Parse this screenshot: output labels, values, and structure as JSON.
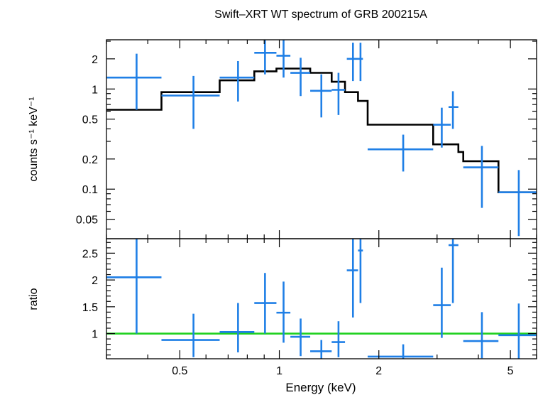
{
  "chart_data": {
    "type": "scatter",
    "title": "Swift–XRT WT spectrum of GRB 200215A",
    "xlabel": "Energy (keV)",
    "xscale": "log",
    "xlim": [
      0.3,
      6.0
    ],
    "x_ticks": [
      "0.5",
      "1",
      "2",
      "5"
    ],
    "x_tick_values": [
      0.5,
      1,
      2,
      5
    ],
    "grid": false,
    "colors": {
      "data": "#1f7fe6",
      "model": "#000000",
      "ratio_line": "#1ed01e"
    },
    "panels": [
      {
        "name": "spectrum",
        "ylabel": "counts s⁻¹ keV⁻¹",
        "yscale": "log",
        "ylim": [
          0.032,
          3.1
        ],
        "y_ticks": [
          "0.05",
          "0.1",
          "0.2",
          "0.5",
          "1",
          "2"
        ],
        "y_tick_values": [
          0.05,
          0.1,
          0.2,
          0.5,
          1,
          2
        ],
        "data": [
          {
            "x": 0.37,
            "xlo": 0.3,
            "xhi": 0.44,
            "y": 1.3,
            "ylo": 0.62,
            "yhi": 2.25
          },
          {
            "x": 0.55,
            "xlo": 0.44,
            "xhi": 0.66,
            "y": 0.86,
            "ylo": 0.4,
            "yhi": 1.35
          },
          {
            "x": 0.75,
            "xlo": 0.66,
            "xhi": 0.84,
            "y": 1.3,
            "ylo": 0.75,
            "yhi": 1.9
          },
          {
            "x": 0.905,
            "xlo": 0.84,
            "xhi": 0.98,
            "y": 2.3,
            "ylo": 1.4,
            "yhi": 3.1
          },
          {
            "x": 1.03,
            "xlo": 0.98,
            "xhi": 1.08,
            "y": 2.15,
            "ylo": 1.3,
            "yhi": 3.1
          },
          {
            "x": 1.16,
            "xlo": 1.08,
            "xhi": 1.24,
            "y": 1.45,
            "ylo": 0.85,
            "yhi": 2.05
          },
          {
            "x": 1.34,
            "xlo": 1.24,
            "xhi": 1.44,
            "y": 0.96,
            "ylo": 0.52,
            "yhi": 1.4
          },
          {
            "x": 1.51,
            "xlo": 1.44,
            "xhi": 1.58,
            "y": 0.98,
            "ylo": 0.55,
            "yhi": 1.45
          },
          {
            "x": 1.67,
            "xlo": 1.6,
            "xhi": 1.73,
            "y": 2.0,
            "ylo": 1.2,
            "yhi": 2.9
          },
          {
            "x": 1.76,
            "xlo": 1.73,
            "xhi": 1.79,
            "y": 2.0,
            "ylo": 1.2,
            "yhi": 2.9
          },
          {
            "x": 2.37,
            "xlo": 1.85,
            "xhi": 2.92,
            "y": 0.25,
            "ylo": 0.15,
            "yhi": 0.35
          },
          {
            "x": 3.1,
            "xlo": 2.92,
            "xhi": 3.3,
            "y": 0.44,
            "ylo": 0.26,
            "yhi": 0.65
          },
          {
            "x": 3.35,
            "xlo": 3.25,
            "xhi": 3.48,
            "y": 0.66,
            "ylo": 0.4,
            "yhi": 0.95
          },
          {
            "x": 4.1,
            "xlo": 3.6,
            "xhi": 4.6,
            "y": 0.165,
            "ylo": 0.065,
            "yhi": 0.27
          },
          {
            "x": 5.3,
            "xlo": 4.6,
            "xhi": 6.0,
            "y": 0.093,
            "ylo": 0.034,
            "yhi": 0.155
          }
        ],
        "model_steps": [
          [
            0.3,
            0.62
          ],
          [
            0.44,
            0.93
          ],
          [
            0.66,
            1.22
          ],
          [
            0.84,
            1.5
          ],
          [
            0.98,
            1.6
          ],
          [
            1.24,
            1.45
          ],
          [
            1.44,
            1.18
          ],
          [
            1.58,
            0.93
          ],
          [
            1.73,
            0.76
          ],
          [
            1.85,
            0.44
          ],
          [
            2.92,
            0.28
          ],
          [
            3.48,
            0.235
          ],
          [
            3.6,
            0.19
          ],
          [
            4.6,
            0.093
          ],
          [
            6.0,
            0.093
          ]
        ]
      },
      {
        "name": "ratio",
        "ylabel": "ratio",
        "yscale": "linear",
        "ylim": [
          0.53,
          2.77
        ],
        "y_ticks": [
          "1",
          "1.5",
          "2",
          "2.5"
        ],
        "y_tick_values": [
          1,
          1.5,
          2,
          2.5
        ],
        "reference_line": 1,
        "data": [
          {
            "x": 0.37,
            "xlo": 0.3,
            "xhi": 0.44,
            "y": 2.05,
            "ylo": 1.0,
            "yhi": 2.77
          },
          {
            "x": 0.55,
            "xlo": 0.44,
            "xhi": 0.66,
            "y": 0.88,
            "ylo": 0.56,
            "yhi": 1.37
          },
          {
            "x": 0.75,
            "xlo": 0.66,
            "xhi": 0.84,
            "y": 1.03,
            "ylo": 0.65,
            "yhi": 1.57
          },
          {
            "x": 0.905,
            "xlo": 0.84,
            "xhi": 0.98,
            "y": 1.57,
            "ylo": 1.0,
            "yhi": 2.13
          },
          {
            "x": 1.03,
            "xlo": 0.98,
            "xhi": 1.08,
            "y": 1.39,
            "ylo": 0.83,
            "yhi": 1.97
          },
          {
            "x": 1.16,
            "xlo": 1.08,
            "xhi": 1.24,
            "y": 0.94,
            "ylo": 0.58,
            "yhi": 1.28
          },
          {
            "x": 1.34,
            "xlo": 1.24,
            "xhi": 1.44,
            "y": 0.67,
            "ylo": 0.53,
            "yhi": 0.88
          },
          {
            "x": 1.51,
            "xlo": 1.44,
            "xhi": 1.58,
            "y": 0.84,
            "ylo": 0.56,
            "yhi": 1.23
          },
          {
            "x": 1.67,
            "xlo": 1.6,
            "xhi": 1.73,
            "y": 2.18,
            "ylo": 1.3,
            "yhi": 2.77
          },
          {
            "x": 1.76,
            "xlo": 1.73,
            "xhi": 1.79,
            "y": 2.55,
            "ylo": 1.57,
            "yhi": 2.77
          },
          {
            "x": 2.37,
            "xlo": 1.85,
            "xhi": 2.92,
            "y": 0.57,
            "ylo": 0.53,
            "yhi": 0.8
          },
          {
            "x": 3.1,
            "xlo": 2.92,
            "xhi": 3.3,
            "y": 1.53,
            "ylo": 0.92,
            "yhi": 2.23
          },
          {
            "x": 3.35,
            "xlo": 3.25,
            "xhi": 3.48,
            "y": 2.65,
            "ylo": 1.57,
            "yhi": 2.77
          },
          {
            "x": 4.1,
            "xlo": 3.6,
            "xhi": 4.6,
            "y": 0.86,
            "ylo": 0.54,
            "yhi": 1.4
          },
          {
            "x": 5.3,
            "xlo": 4.6,
            "xhi": 6.0,
            "y": 0.97,
            "ylo": 0.53,
            "yhi": 1.56
          }
        ]
      }
    ]
  }
}
